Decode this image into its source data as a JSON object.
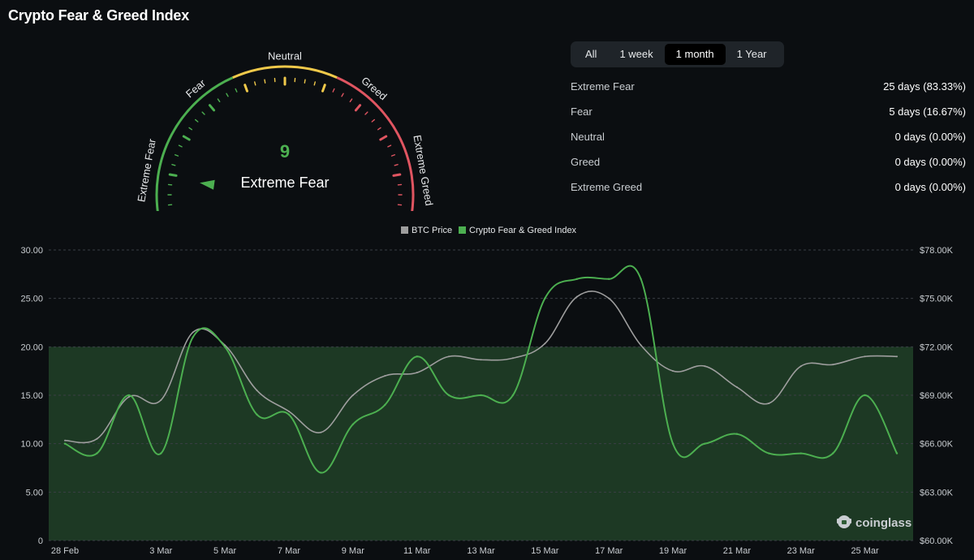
{
  "title": "Crypto Fear & Greed Index",
  "gauge": {
    "value": 9,
    "max": 100,
    "classification": "Extreme Fear",
    "labels": [
      "Extreme Fear",
      "Fear",
      "Neutral",
      "Greed",
      "Extreme Greed"
    ]
  },
  "tabs": [
    {
      "label": "All",
      "active": false
    },
    {
      "label": "1 week",
      "active": false
    },
    {
      "label": "1 month",
      "active": true
    },
    {
      "label": "1 Year",
      "active": false
    }
  ],
  "stats": [
    {
      "label": "Extreme Fear",
      "value": "25 days (83.33%)"
    },
    {
      "label": "Fear",
      "value": "5 days (16.67%)"
    },
    {
      "label": "Neutral",
      "value": "0 days (0.00%)"
    },
    {
      "label": "Greed",
      "value": "0 days (0.00%)"
    },
    {
      "label": "Extreme Greed",
      "value": "0 days (0.00%)"
    }
  ],
  "watermark": "coinglass",
  "colors": {
    "extreme_fear": "#4caf50",
    "neutral": "#f0c94a",
    "greed": "#e05561",
    "fng_line": "#4caf50",
    "btc_line": "#9e9e9e"
  },
  "chart_data": {
    "type": "line",
    "title": "",
    "legend": [
      "BTC Price",
      "Crypto Fear & Greed Index"
    ],
    "legend_position": "top-center",
    "x": [
      "28 Feb",
      "1 Mar",
      "2 Mar",
      "3 Mar",
      "4 Mar",
      "5 Mar",
      "6 Mar",
      "7 Mar",
      "8 Mar",
      "9 Mar",
      "10 Mar",
      "11 Mar",
      "12 Mar",
      "13 Mar",
      "14 Mar",
      "15 Mar",
      "16 Mar",
      "17 Mar",
      "18 Mar",
      "19 Mar",
      "20 Mar",
      "21 Mar",
      "22 Mar",
      "23 Mar",
      "24 Mar",
      "25 Mar",
      "26 Mar"
    ],
    "x_tick_labels": [
      "28 Feb",
      "3 Mar",
      "5 Mar",
      "7 Mar",
      "9 Mar",
      "11 Mar",
      "13 Mar",
      "15 Mar",
      "17 Mar",
      "19 Mar",
      "21 Mar",
      "23 Mar",
      "25 Mar"
    ],
    "y_left": {
      "ticks": [
        "0",
        "5.00",
        "10.00",
        "15.00",
        "20.00",
        "25.00",
        "30.00"
      ],
      "ylim": [
        0,
        30
      ]
    },
    "y_right": {
      "ticks": [
        "$60.00K",
        "$63.00K",
        "$66.00K",
        "$69.00K",
        "$72.00K",
        "$75.00K",
        "$78.00K"
      ],
      "ylim": [
        60000,
        78000
      ]
    },
    "grid": true,
    "highlight_zone": {
      "from": 0,
      "to": 20,
      "label": "Extreme Fear"
    },
    "series": [
      {
        "name": "Crypto Fear & Greed Index",
        "axis": "left",
        "values": [
          10,
          9,
          15,
          9,
          21,
          20,
          13,
          13,
          7,
          12,
          14,
          19,
          15,
          15,
          15,
          25,
          27,
          27,
          27,
          10,
          10,
          11,
          9,
          9,
          9,
          15,
          9
        ]
      },
      {
        "name": "BTC Price",
        "axis": "right",
        "values": [
          66200,
          66300,
          68900,
          68700,
          72900,
          72100,
          69300,
          68000,
          66700,
          69000,
          70200,
          70400,
          71400,
          71200,
          71300,
          72200,
          75100,
          75000,
          72100,
          70500,
          70800,
          69500,
          68500,
          70800,
          70900,
          71400,
          71400
        ]
      }
    ]
  }
}
